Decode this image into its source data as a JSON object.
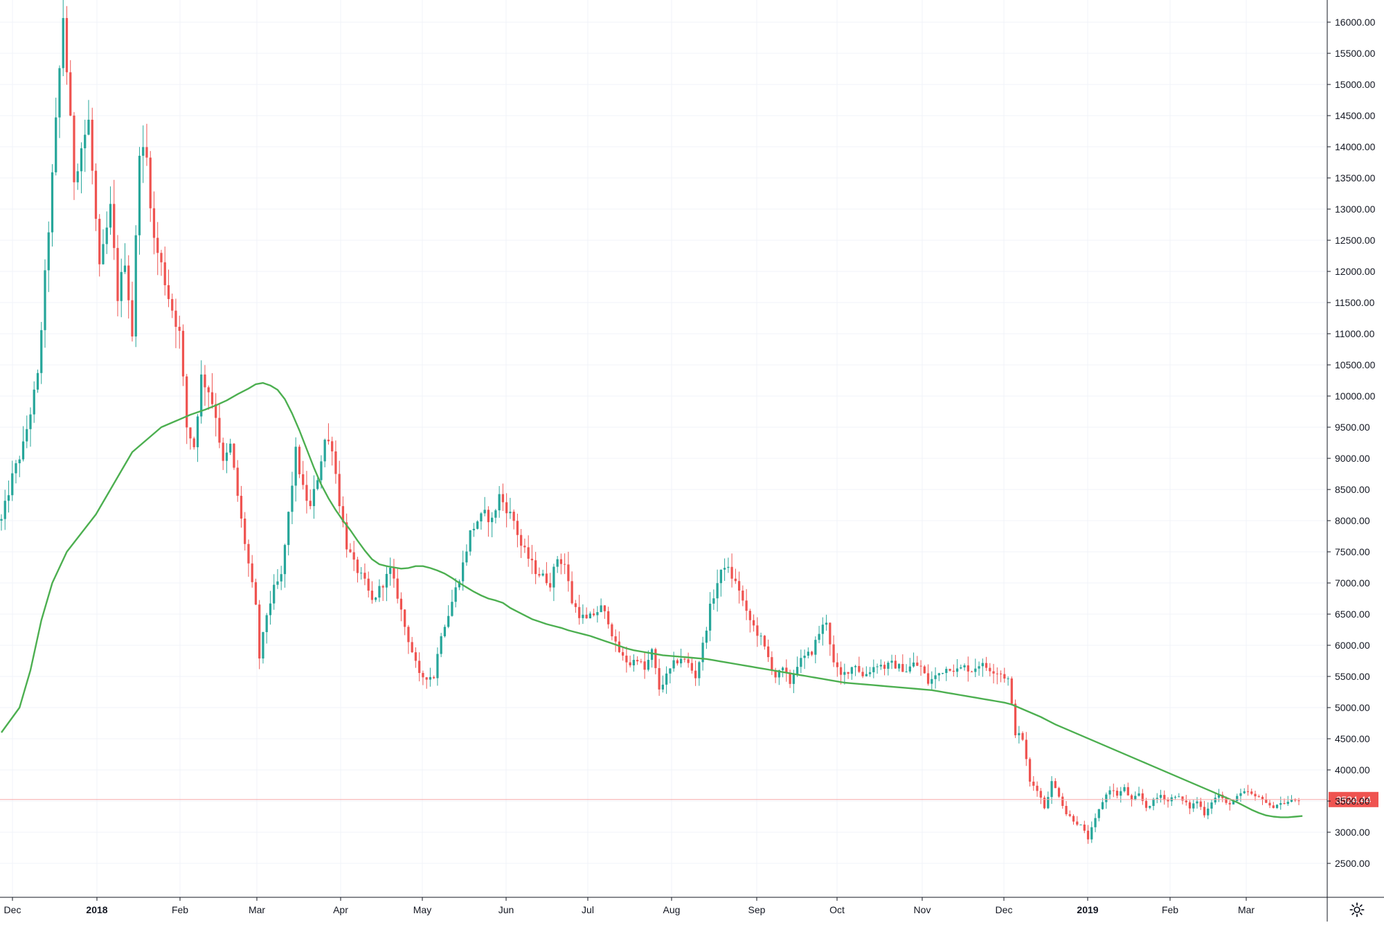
{
  "chart_data": {
    "type": "candlestick",
    "series": [
      {
        "name": "",
        "kind": "candles"
      },
      {
        "name": "",
        "kind": "moving-average",
        "color": "#4caf50"
      }
    ],
    "ylim": [
      2000,
      16400
    ],
    "y_ticks": [
      16000,
      15500,
      15000,
      14500,
      14000,
      13500,
      13000,
      12500,
      12000,
      11500,
      11000,
      10500,
      10000,
      9500,
      9000,
      8500,
      8000,
      7500,
      7000,
      6500,
      6000,
      5500,
      5000,
      4500,
      4000,
      3500,
      3000,
      2500
    ],
    "y_tick_labels": [
      "16000.00",
      "15500.00",
      "15000.00",
      "14500.00",
      "14000.00",
      "13500.00",
      "13000.00",
      "12500.00",
      "12000.00",
      "11500.00",
      "11000.00",
      "10500.00",
      "10000.00",
      "9500.00",
      "9000.00",
      "8500.00",
      "8000.00",
      "7500.00",
      "7000.00",
      "6500.00",
      "6000.00",
      "5500.00",
      "5000.00",
      "4500.00",
      "4000.00",
      "3500.00",
      "3000.00",
      "2500.00"
    ],
    "x_labels": [
      {
        "label": "Dec",
        "bold": false
      },
      {
        "label": "2018",
        "bold": true
      },
      {
        "label": "Feb",
        "bold": false
      },
      {
        "label": "Mar",
        "bold": false
      },
      {
        "label": "Apr",
        "bold": false
      },
      {
        "label": "May",
        "bold": false
      },
      {
        "label": "Jun",
        "bold": false
      },
      {
        "label": "Jul",
        "bold": false
      },
      {
        "label": "Aug",
        "bold": false
      },
      {
        "label": "Sep",
        "bold": false
      },
      {
        "label": "Oct",
        "bold": false
      },
      {
        "label": "Nov",
        "bold": false
      },
      {
        "label": "Dec",
        "bold": false
      },
      {
        "label": "2019",
        "bold": true
      },
      {
        "label": "Feb",
        "bold": false
      },
      {
        "label": "Mar",
        "bold": false
      }
    ],
    "close_anchors": [
      [
        0,
        8000
      ],
      [
        3,
        8700
      ],
      [
        6,
        9200
      ],
      [
        10,
        10300
      ],
      [
        14,
        13500
      ],
      [
        17,
        16100
      ],
      [
        20,
        13500
      ],
      [
        22,
        14000
      ],
      [
        24,
        14400
      ],
      [
        27,
        12000
      ],
      [
        30,
        13000
      ],
      [
        32,
        11600
      ],
      [
        34,
        12200
      ],
      [
        36,
        11000
      ],
      [
        38,
        14000
      ],
      [
        40,
        13800
      ],
      [
        42,
        12500
      ],
      [
        44,
        12100
      ],
      [
        46,
        11600
      ],
      [
        49,
        11000
      ],
      [
        51,
        9500
      ],
      [
        53,
        9200
      ],
      [
        55,
        10300
      ],
      [
        57,
        10100
      ],
      [
        59,
        9700
      ],
      [
        61,
        8900
      ],
      [
        63,
        9200
      ],
      [
        66,
        8000
      ],
      [
        68,
        7300
      ],
      [
        70,
        6600
      ],
      [
        71,
        5800
      ],
      [
        73,
        6500
      ],
      [
        75,
        6900
      ],
      [
        77,
        7100
      ],
      [
        79,
        8100
      ],
      [
        81,
        9100
      ],
      [
        83,
        8500
      ],
      [
        85,
        8200
      ],
      [
        87,
        8700
      ],
      [
        89,
        9300
      ],
      [
        91,
        9200
      ],
      [
        93,
        8300
      ],
      [
        95,
        7600
      ],
      [
        97,
        7300
      ],
      [
        100,
        7000
      ],
      [
        102,
        6700
      ],
      [
        105,
        7000
      ],
      [
        107,
        7200
      ],
      [
        109,
        6800
      ],
      [
        111,
        6300
      ],
      [
        113,
        5900
      ],
      [
        115,
        5500
      ],
      [
        117,
        5500
      ],
      [
        119,
        5500
      ],
      [
        121,
        6200
      ],
      [
        123,
        6500
      ],
      [
        125,
        6900
      ],
      [
        127,
        7300
      ],
      [
        129,
        7800
      ],
      [
        131,
        8000
      ],
      [
        133,
        8100
      ],
      [
        135,
        8000
      ],
      [
        137,
        8400
      ],
      [
        139,
        8200
      ],
      [
        141,
        8000
      ],
      [
        143,
        7600
      ],
      [
        145,
        7400
      ],
      [
        147,
        7200
      ],
      [
        149,
        7100
      ],
      [
        151,
        7000
      ],
      [
        153,
        7400
      ],
      [
        155,
        7300
      ],
      [
        157,
        6700
      ],
      [
        159,
        6500
      ],
      [
        161,
        6400
      ],
      [
        163,
        6500
      ],
      [
        165,
        6600
      ],
      [
        167,
        6400
      ],
      [
        169,
        6000
      ],
      [
        171,
        5800
      ],
      [
        173,
        5700
      ],
      [
        175,
        5800
      ],
      [
        177,
        5600
      ],
      [
        179,
        5900
      ],
      [
        181,
        5300
      ],
      [
        183,
        5500
      ],
      [
        185,
        5700
      ],
      [
        187,
        5800
      ],
      [
        189,
        5700
      ],
      [
        191,
        5500
      ],
      [
        193,
        6000
      ],
      [
        195,
        6600
      ],
      [
        197,
        7000
      ],
      [
        199,
        7300
      ],
      [
        201,
        7100
      ],
      [
        203,
        6900
      ],
      [
        205,
        6500
      ],
      [
        207,
        6300
      ],
      [
        209,
        6100
      ],
      [
        211,
        5800
      ],
      [
        213,
        5500
      ],
      [
        215,
        5600
      ],
      [
        217,
        5400
      ],
      [
        219,
        5700
      ],
      [
        221,
        5800
      ],
      [
        223,
        5900
      ],
      [
        225,
        6200
      ],
      [
        227,
        6400
      ],
      [
        229,
        5700
      ],
      [
        231,
        5500
      ],
      [
        233,
        5600
      ],
      [
        235,
        5700
      ],
      [
        237,
        5500
      ],
      [
        239,
        5600
      ],
      [
        241,
        5700
      ],
      [
        243,
        5650
      ],
      [
        245,
        5700
      ],
      [
        247,
        5650
      ],
      [
        249,
        5600
      ],
      [
        251,
        5700
      ],
      [
        253,
        5650
      ],
      [
        255,
        5400
      ],
      [
        257,
        5500
      ],
      [
        259,
        5600
      ],
      [
        261,
        5650
      ],
      [
        263,
        5600
      ],
      [
        265,
        5650
      ],
      [
        267,
        5600
      ],
      [
        269,
        5700
      ],
      [
        271,
        5650
      ],
      [
        273,
        5600
      ],
      [
        275,
        5550
      ],
      [
        277,
        5450
      ],
      [
        279,
        4600
      ],
      [
        281,
        4500
      ],
      [
        283,
        3800
      ],
      [
        285,
        3700
      ],
      [
        287,
        3400
      ],
      [
        289,
        3800
      ],
      [
        291,
        3600
      ],
      [
        293,
        3300
      ],
      [
        295,
        3200
      ],
      [
        297,
        3100
      ],
      [
        299,
        2900
      ],
      [
        301,
        3200
      ],
      [
        303,
        3500
      ],
      [
        305,
        3700
      ],
      [
        307,
        3600
      ],
      [
        309,
        3700
      ],
      [
        311,
        3500
      ],
      [
        313,
        3600
      ],
      [
        315,
        3400
      ],
      [
        317,
        3500
      ],
      [
        319,
        3600
      ],
      [
        321,
        3500
      ],
      [
        323,
        3600
      ],
      [
        325,
        3500
      ],
      [
        327,
        3400
      ],
      [
        329,
        3500
      ],
      [
        331,
        3300
      ],
      [
        333,
        3500
      ],
      [
        335,
        3600
      ],
      [
        337,
        3450
      ],
      [
        339,
        3500
      ],
      [
        341,
        3600
      ],
      [
        343,
        3650
      ],
      [
        345,
        3550
      ],
      [
        347,
        3560
      ],
      [
        349,
        3400
      ],
      [
        351,
        3450
      ],
      [
        353,
        3470
      ],
      [
        355,
        3500
      ],
      [
        357,
        3524
      ]
    ],
    "ma_anchors": [
      [
        0,
        4600
      ],
      [
        5,
        5000
      ],
      [
        8,
        5600
      ],
      [
        11,
        6400
      ],
      [
        14,
        7000
      ],
      [
        18,
        7500
      ],
      [
        22,
        7800
      ],
      [
        26,
        8100
      ],
      [
        30,
        8500
      ],
      [
        33,
        8800
      ],
      [
        36,
        9100
      ],
      [
        40,
        9300
      ],
      [
        44,
        9500
      ],
      [
        48,
        9600
      ],
      [
        52,
        9700
      ],
      [
        56,
        9780
      ],
      [
        59,
        9850
      ],
      [
        62,
        9930
      ],
      [
        65,
        10030
      ],
      [
        68,
        10120
      ],
      [
        70,
        10190
      ],
      [
        72,
        10210
      ],
      [
        74,
        10170
      ],
      [
        76,
        10100
      ],
      [
        78,
        9950
      ],
      [
        80,
        9720
      ],
      [
        82,
        9450
      ],
      [
        84,
        9150
      ],
      [
        86,
        8850
      ],
      [
        88,
        8580
      ],
      [
        90,
        8360
      ],
      [
        92,
        8170
      ],
      [
        94,
        8000
      ],
      [
        96,
        7850
      ],
      [
        98,
        7680
      ],
      [
        100,
        7520
      ],
      [
        102,
        7380
      ],
      [
        104,
        7300
      ],
      [
        106,
        7270
      ],
      [
        108,
        7250
      ],
      [
        110,
        7230
      ],
      [
        112,
        7240
      ],
      [
        114,
        7270
      ],
      [
        116,
        7270
      ],
      [
        118,
        7240
      ],
      [
        120,
        7200
      ],
      [
        122,
        7150
      ],
      [
        124,
        7080
      ],
      [
        126,
        7000
      ],
      [
        128,
        6930
      ],
      [
        130,
        6860
      ],
      [
        132,
        6800
      ],
      [
        134,
        6750
      ],
      [
        136,
        6720
      ],
      [
        138,
        6680
      ],
      [
        140,
        6600
      ],
      [
        142,
        6540
      ],
      [
        144,
        6480
      ],
      [
        146,
        6420
      ],
      [
        148,
        6380
      ],
      [
        150,
        6340
      ],
      [
        152,
        6310
      ],
      [
        154,
        6280
      ],
      [
        156,
        6240
      ],
      [
        158,
        6210
      ],
      [
        160,
        6180
      ],
      [
        162,
        6150
      ],
      [
        164,
        6110
      ],
      [
        166,
        6070
      ],
      [
        168,
        6030
      ],
      [
        170,
        5990
      ],
      [
        172,
        5950
      ],
      [
        174,
        5920
      ],
      [
        176,
        5900
      ],
      [
        178,
        5880
      ],
      [
        180,
        5860
      ],
      [
        182,
        5840
      ],
      [
        184,
        5830
      ],
      [
        186,
        5820
      ],
      [
        188,
        5810
      ],
      [
        190,
        5800
      ],
      [
        192,
        5790
      ],
      [
        194,
        5780
      ],
      [
        196,
        5760
      ],
      [
        198,
        5740
      ],
      [
        200,
        5720
      ],
      [
        202,
        5700
      ],
      [
        204,
        5680
      ],
      [
        206,
        5660
      ],
      [
        208,
        5640
      ],
      [
        210,
        5620
      ],
      [
        212,
        5600
      ],
      [
        214,
        5580
      ],
      [
        216,
        5560
      ],
      [
        218,
        5540
      ],
      [
        220,
        5520
      ],
      [
        222,
        5500
      ],
      [
        224,
        5480
      ],
      [
        226,
        5460
      ],
      [
        228,
        5440
      ],
      [
        230,
        5420
      ],
      [
        232,
        5400
      ],
      [
        234,
        5390
      ],
      [
        236,
        5380
      ],
      [
        238,
        5370
      ],
      [
        240,
        5360
      ],
      [
        242,
        5350
      ],
      [
        244,
        5340
      ],
      [
        246,
        5330
      ],
      [
        248,
        5320
      ],
      [
        250,
        5310
      ],
      [
        252,
        5300
      ],
      [
        254,
        5290
      ],
      [
        256,
        5280
      ],
      [
        258,
        5260
      ],
      [
        260,
        5240
      ],
      [
        262,
        5220
      ],
      [
        264,
        5200
      ],
      [
        266,
        5180
      ],
      [
        268,
        5160
      ],
      [
        270,
        5140
      ],
      [
        272,
        5120
      ],
      [
        274,
        5100
      ],
      [
        276,
        5080
      ],
      [
        278,
        5050
      ],
      [
        280,
        5000
      ],
      [
        282,
        4950
      ],
      [
        284,
        4900
      ],
      [
        286,
        4850
      ],
      [
        288,
        4790
      ],
      [
        290,
        4730
      ],
      [
        292,
        4680
      ],
      [
        294,
        4630
      ],
      [
        296,
        4580
      ],
      [
        298,
        4530
      ],
      [
        300,
        4480
      ],
      [
        302,
        4430
      ],
      [
        304,
        4380
      ],
      [
        306,
        4330
      ],
      [
        308,
        4280
      ],
      [
        310,
        4230
      ],
      [
        312,
        4180
      ],
      [
        314,
        4130
      ],
      [
        316,
        4080
      ],
      [
        318,
        4030
      ],
      [
        320,
        3980
      ],
      [
        322,
        3930
      ],
      [
        324,
        3880
      ],
      [
        326,
        3830
      ],
      [
        328,
        3780
      ],
      [
        330,
        3730
      ],
      [
        332,
        3680
      ],
      [
        334,
        3630
      ],
      [
        336,
        3580
      ],
      [
        338,
        3530
      ],
      [
        340,
        3480
      ],
      [
        342,
        3420
      ],
      [
        344,
        3360
      ],
      [
        346,
        3310
      ],
      [
        348,
        3270
      ],
      [
        350,
        3250
      ],
      [
        352,
        3240
      ],
      [
        354,
        3240
      ],
      [
        356,
        3250
      ],
      [
        358,
        3260
      ]
    ],
    "last_price": 3524.44,
    "last_price_label": "3524.44",
    "up_color": "#26a69a",
    "down_color": "#ef5350",
    "grid": true,
    "price_axis_side": "right"
  },
  "ui": {
    "settings_icon": "gear-icon"
  }
}
